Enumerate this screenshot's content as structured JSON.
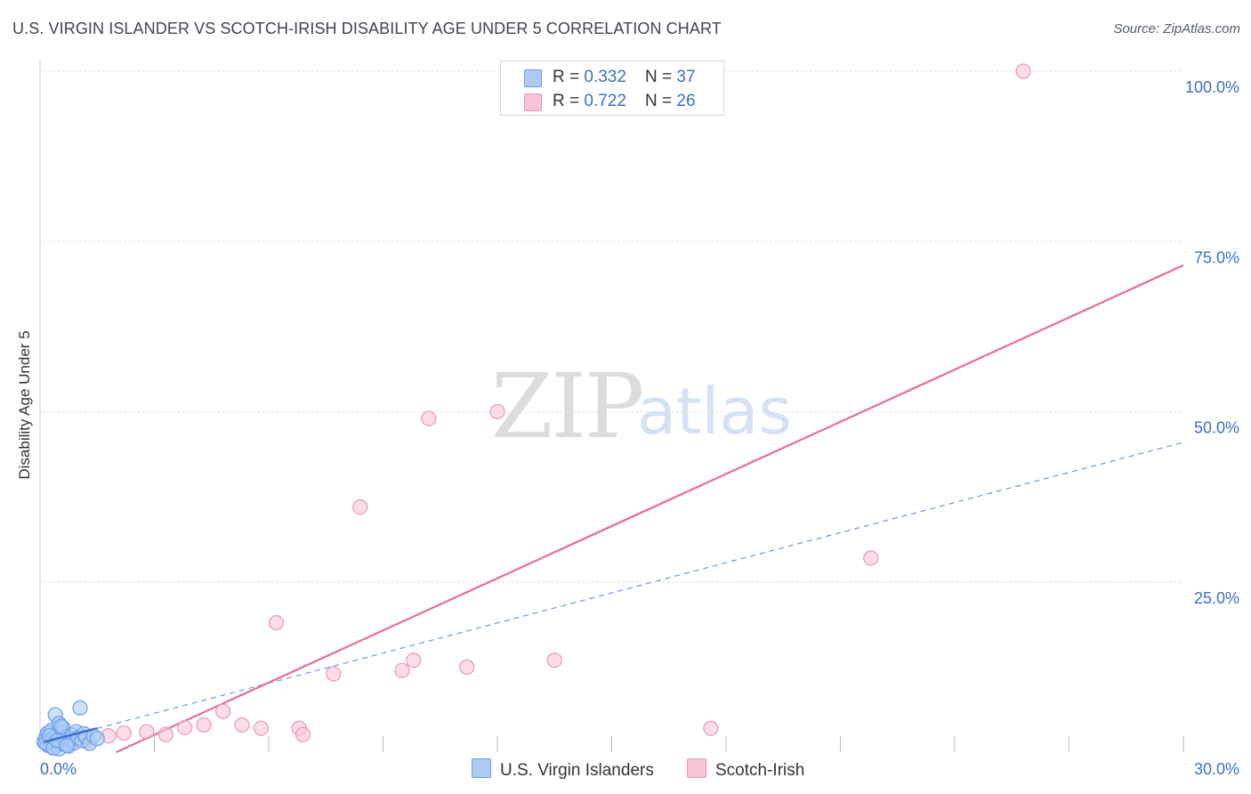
{
  "title": "U.S. VIRGIN ISLANDER VS SCOTCH-IRISH DISABILITY AGE UNDER 5 CORRELATION CHART",
  "source": "Source: ZipAtlas.com",
  "watermark": {
    "zip": "ZIP",
    "atlas": "atlas"
  },
  "colors": {
    "blue": "#6a9ee8",
    "blue_fill": "#aecbf3",
    "blue_line": "#3d6fcf",
    "pink": "#e96d94",
    "pink_fill": "#f7c6d6",
    "axis_text": "#3a6fc8",
    "grid": "#dddddd"
  },
  "legend": {
    "r_label": "R = ",
    "n_label": "N = ",
    "series": [
      {
        "name": "U.S. Virgin Islanders",
        "r": "0.332",
        "n": "37"
      },
      {
        "name": "Scotch-Irish",
        "r": "0.722",
        "n": "26"
      }
    ]
  },
  "chart_data": {
    "type": "scatter",
    "xlabel": "",
    "ylabel": "Disability Age Under 5",
    "xlim": [
      0,
      30
    ],
    "ylim": [
      0,
      100
    ],
    "x_tick_labels": [
      {
        "value": 0,
        "label": "0.0%"
      },
      {
        "value": 30,
        "label": "30.0%"
      }
    ],
    "y_tick_labels": [
      {
        "value": 25,
        "label": "25.0%"
      },
      {
        "value": 50,
        "label": "50.0%"
      },
      {
        "value": 75,
        "label": "75.0%"
      },
      {
        "value": 100,
        "label": "100.0%"
      }
    ],
    "series": [
      {
        "name": "U.S. Virgin Islanders",
        "points": [
          [
            0.1,
            1.5
          ],
          [
            0.15,
            2.2
          ],
          [
            0.2,
            1.0
          ],
          [
            0.2,
            2.8
          ],
          [
            0.25,
            1.8
          ],
          [
            0.3,
            3.2
          ],
          [
            0.3,
            0.8
          ],
          [
            0.35,
            2.0
          ],
          [
            0.4,
            5.5
          ],
          [
            0.4,
            1.2
          ],
          [
            0.45,
            2.6
          ],
          [
            0.5,
            4.2
          ],
          [
            0.5,
            0.5
          ],
          [
            0.55,
            1.6
          ],
          [
            0.6,
            2.9
          ],
          [
            0.6,
            3.6
          ],
          [
            0.65,
            1.1
          ],
          [
            0.7,
            2.3
          ],
          [
            0.75,
            0.9
          ],
          [
            0.8,
            1.9
          ],
          [
            0.85,
            2.5
          ],
          [
            0.9,
            1.4
          ],
          [
            0.95,
            3.0
          ],
          [
            1.0,
            2.1
          ],
          [
            1.05,
            6.5
          ],
          [
            1.1,
            1.7
          ],
          [
            1.15,
            2.7
          ],
          [
            1.2,
            2.2
          ],
          [
            1.3,
            1.3
          ],
          [
            1.4,
            2.4
          ],
          [
            1.5,
            2.0
          ],
          [
            0.15,
            1.3
          ],
          [
            0.25,
            2.4
          ],
          [
            0.35,
            0.6
          ],
          [
            0.45,
            1.7
          ],
          [
            0.55,
            3.8
          ],
          [
            0.7,
            1.0
          ]
        ],
        "trend_solid": {
          "x": [
            0.1,
            1.5
          ],
          "y": [
            1.5,
            3.5
          ]
        },
        "trend_dashed": {
          "x": [
            1.5,
            30.0
          ],
          "y": [
            3.5,
            45.5
          ]
        }
      },
      {
        "name": "Scotch-Irish",
        "points": [
          [
            0.5,
            1.8
          ],
          [
            1.0,
            2.0
          ],
          [
            1.2,
            1.6
          ],
          [
            1.8,
            2.4
          ],
          [
            2.2,
            2.8
          ],
          [
            2.8,
            3.0
          ],
          [
            3.3,
            2.6
          ],
          [
            3.8,
            3.6
          ],
          [
            4.3,
            4.0
          ],
          [
            4.8,
            6.0
          ],
          [
            5.3,
            4.0
          ],
          [
            5.8,
            3.5
          ],
          [
            6.2,
            19.0
          ],
          [
            6.8,
            3.5
          ],
          [
            6.9,
            2.6
          ],
          [
            7.7,
            11.5
          ],
          [
            8.4,
            36.0
          ],
          [
            9.5,
            12.0
          ],
          [
            9.8,
            13.5
          ],
          [
            10.2,
            49.0
          ],
          [
            11.2,
            12.5
          ],
          [
            12.0,
            50.0
          ],
          [
            13.5,
            13.5
          ],
          [
            17.6,
            3.5
          ],
          [
            21.8,
            28.5
          ],
          [
            25.8,
            100.0
          ]
        ],
        "trend_solid": {
          "x": [
            2.0,
            30.0
          ],
          "y": [
            0.0,
            71.5
          ]
        }
      }
    ]
  }
}
